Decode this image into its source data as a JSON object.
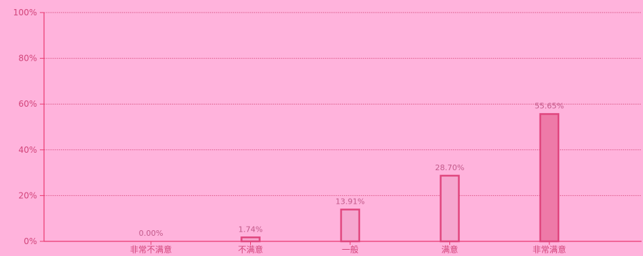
{
  "colors": {
    "background": "#ffb3dc",
    "axis": "#e8386f",
    "grid": "#e26a98",
    "bar_fill": "#f6a6cf",
    "bar_stroke": "#e0467e",
    "top_bar_fill": "#ee7aa8",
    "text": "#d2457a"
  },
  "chart_data": {
    "type": "bar",
    "title": "",
    "xlabel": "",
    "ylabel": "",
    "categories": [
      "非常不满意",
      "不满意",
      "一般",
      "满意",
      "非常满意"
    ],
    "values": [
      0.0,
      1.74,
      13.91,
      28.7,
      55.65
    ],
    "data_labels": [
      "0.00%",
      "1.74%",
      "13.91%",
      "28.70%",
      "55.65%"
    ],
    "ylim": [
      0,
      100
    ],
    "yticks": [
      0,
      20,
      40,
      60,
      80,
      100
    ],
    "ytick_labels": [
      "0%",
      "20%",
      "40%",
      "60%",
      "80%",
      "100%"
    ],
    "grid": true,
    "legend": "none"
  }
}
